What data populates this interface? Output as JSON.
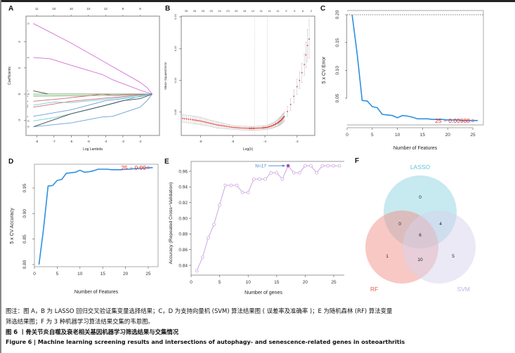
{
  "panels": {
    "A": {
      "letter": "A"
    },
    "B": {
      "letter": "B"
    },
    "C": {
      "letter": "C"
    },
    "D": {
      "letter": "D"
    },
    "E": {
      "letter": "E"
    },
    "F": {
      "letter": "F"
    }
  },
  "caption": {
    "note_line1": "图注：图 A，B 为 LASSO 回归交叉验证集变量选择结果；C，D 为支持向量机 (SVM) 算法结果图 ( 误差率及准确率 )；E 为随机森林 (RF) 算法变量",
    "note_line2": "筛选结果图；F 为 3 种机器学习算法结果交集的韦恩图。",
    "title_cn": "图 6 丨骨关节炎自噬及衰老相关基因机器学习筛选结果与交集情况",
    "title_en": "Figure 6  |  Machine learning screening results and intersections of autophagy- and senescence-related genes in osteoarthritis"
  },
  "chart_data": [
    {
      "id": "A",
      "type": "line",
      "title": "",
      "xlabel": "Log Lambda",
      "ylabel": "Coefficients",
      "xlim": [
        -8.5,
        -1.0
      ],
      "ylim": [
        -3.0,
        5.8
      ],
      "xticks": [
        -8,
        -7,
        -6,
        -5,
        -4,
        -3,
        -2
      ],
      "yticks": [
        -2,
        0,
        2,
        4
      ],
      "top_axis_x": [
        -8.0,
        -7.0,
        -6.0,
        -5.0,
        -4.0,
        -3.0,
        -2.0
      ],
      "top_axis_labels": [
        "11",
        "10",
        "10",
        "10",
        "12",
        "8",
        "8"
      ],
      "series": [
        {
          "name": "path1",
          "color": "#d36fd6",
          "x": [
            -8.2,
            -6,
            -4,
            -2,
            -1.6,
            -1.3
          ],
          "y": [
            5.4,
            3.9,
            2.4,
            0.9,
            0.5,
            0
          ]
        },
        {
          "name": "path2",
          "color": "#d36fd6",
          "x": [
            -8.2,
            -7.2,
            -6,
            -4.2,
            -3.6,
            -2,
            -1.3
          ],
          "y": [
            2.8,
            2.7,
            2.2,
            1.5,
            1.1,
            0.3,
            0
          ]
        },
        {
          "name": "path3",
          "color": "#444444",
          "x": [
            -8.2,
            -7.3,
            -2,
            -1.3
          ],
          "y": [
            0.25,
            0,
            0,
            0
          ]
        },
        {
          "name": "path4",
          "color": "#70b070",
          "x": [
            -8.2,
            -1.3
          ],
          "y": [
            0.0,
            0
          ]
        },
        {
          "name": "path5",
          "color": "#70b070",
          "x": [
            -8.2,
            -4,
            -1.3
          ],
          "y": [
            -0.15,
            -0.1,
            0
          ]
        },
        {
          "name": "path6",
          "color": "#d46a78",
          "x": [
            -8.2,
            -6.5,
            -4.2,
            -3.5,
            -1.3
          ],
          "y": [
            -0.55,
            -0.35,
            0,
            -0.1,
            0
          ]
        },
        {
          "name": "path7",
          "color": "#d46a78",
          "x": [
            -8.2,
            -6,
            -4,
            -1.3
          ],
          "y": [
            -1.0,
            -0.55,
            -0.3,
            0
          ]
        },
        {
          "name": "path8",
          "color": "#6fcfd8",
          "x": [
            -8.2,
            -7,
            -6,
            -4,
            -2,
            -1.3
          ],
          "y": [
            -0.85,
            -0.6,
            -0.65,
            -0.4,
            -0.1,
            0
          ]
        },
        {
          "name": "path9",
          "color": "#6a9fd8",
          "x": [
            -8.2,
            -6,
            -4,
            -2,
            -1.3
          ],
          "y": [
            -1.7,
            -1.2,
            -0.5,
            -0.2,
            0
          ]
        },
        {
          "name": "path10",
          "color": "#6fcfd8",
          "x": [
            -8.2,
            -7,
            -5,
            -3.5,
            -2,
            -1.3
          ],
          "y": [
            -2.05,
            -1.8,
            -1.2,
            -0.7,
            -0.15,
            0
          ]
        },
        {
          "name": "path11",
          "color": "#444444",
          "x": [
            -8.2,
            -6,
            -4,
            -3,
            -2,
            -1.6,
            -1.3
          ],
          "y": [
            -2.5,
            -1.5,
            -0.85,
            -0.5,
            -0.35,
            -0.15,
            0
          ]
        },
        {
          "name": "path12",
          "color": "#6a9fd8",
          "x": [
            -8.2,
            -6,
            -4.2,
            -3.6,
            -2,
            -1.6,
            -1.3
          ],
          "y": [
            -2.5,
            -2.2,
            -1.75,
            -1.7,
            -1.0,
            -0.5,
            0
          ]
        }
      ],
      "left_labels": [
        "15",
        "21",
        "1",
        "16",
        "3",
        "4",
        "2",
        "8",
        "4",
        "26",
        "26"
      ]
    },
    {
      "id": "B",
      "type": "scatter",
      "title": "",
      "xlabel": "Log(λ)",
      "ylabel": "Mean−Squared Error",
      "xlim": [
        -9.2,
        -0.9
      ],
      "ylim": [
        0.0,
        0.2
      ],
      "xticks": [
        -8,
        -6,
        -4,
        -2
      ],
      "yticks": [
        0.05,
        0.1,
        0.15,
        0.2
      ],
      "top_axis_labels": [
        "25",
        "26",
        "25",
        "25",
        "24",
        "23",
        "20",
        "15",
        "12",
        "11",
        "11",
        "11",
        "9",
        "9",
        "6",
        "2"
      ],
      "vlines": [
        -4.65,
        -3.85
      ],
      "curve_points": [
        [
          -9.1,
          0.04
        ],
        [
          -8.5,
          0.038
        ],
        [
          -8.0,
          0.036
        ],
        [
          -7.5,
          0.033
        ],
        [
          -7.0,
          0.03
        ],
        [
          -6.5,
          0.028
        ],
        [
          -6.0,
          0.026
        ],
        [
          -5.5,
          0.025
        ],
        [
          -5.0,
          0.0245
        ],
        [
          -4.65,
          0.0245
        ],
        [
          -4.2,
          0.025
        ],
        [
          -3.85,
          0.026
        ],
        [
          -3.5,
          0.029
        ],
        [
          -3.2,
          0.033
        ],
        [
          -3.0,
          0.037
        ],
        [
          -2.8,
          0.043
        ],
        [
          -2.6,
          0.051
        ],
        [
          -2.4,
          0.062
        ],
        [
          -2.2,
          0.075
        ],
        [
          -2.0,
          0.09
        ],
        [
          -1.85,
          0.1
        ],
        [
          -1.7,
          0.112
        ],
        [
          -1.55,
          0.125
        ],
        [
          -1.45,
          0.14
        ],
        [
          -1.35,
          0.155
        ],
        [
          -1.25,
          0.165
        ]
      ],
      "error_halfwidth": [
        0.006,
        0.006,
        0.006,
        0.005,
        0.005,
        0.004,
        0.003,
        0.003,
        0.003,
        0.003,
        0.003,
        0.003,
        0.004,
        0.005,
        0.006,
        0.007,
        0.008,
        0.009,
        0.01,
        0.012,
        0.013,
        0.015,
        0.017,
        0.02,
        0.025,
        0.03
      ],
      "point_color": "#e8312b",
      "error_color": "#bbbbbb"
    },
    {
      "id": "C",
      "type": "line",
      "title": "",
      "xlabel": "Number of Features",
      "ylabel": "5 x CV Error",
      "xlim": [
        0,
        26.5
      ],
      "ylim": [
        0.005,
        0.205
      ],
      "xticks": [
        0,
        5,
        10,
        15,
        20,
        25
      ],
      "yticks": [
        0.05,
        0.1,
        0.15,
        0.2
      ],
      "hline": 0.2,
      "x": [
        1,
        2,
        3,
        4,
        5,
        6,
        7,
        8,
        9,
        10,
        11,
        12,
        13,
        14,
        15,
        16,
        17,
        18,
        19,
        20,
        21,
        22,
        23,
        24,
        25,
        26
      ],
      "values": [
        0.2,
        0.13,
        0.046,
        0.045,
        0.035,
        0.033,
        0.021,
        0.02,
        0.019,
        0.015,
        0.019,
        0.018,
        0.016,
        0.013,
        0.013,
        0.013,
        0.012,
        0.012,
        0.012,
        0.011,
        0.011,
        0.011,
        0.01,
        0.01,
        0.00988,
        0.01
      ],
      "annotation": "25 − 0.00988",
      "annotation_x": 25,
      "annotation_y": 0.00988,
      "line_color": "#2f8fe0",
      "annotation_color": "#e8312b"
    },
    {
      "id": "D",
      "type": "line",
      "title": "",
      "xlabel": "Number of Features",
      "ylabel": "5 x CV Accuracy",
      "xlim": [
        0,
        26.5
      ],
      "ylim": [
        0.795,
        0.995
      ],
      "xticks": [
        0,
        5,
        10,
        15,
        20,
        25
      ],
      "yticks": [
        0.8,
        0.85,
        0.9,
        0.95
      ],
      "x": [
        1,
        2,
        3,
        4,
        5,
        6,
        7,
        8,
        9,
        10,
        11,
        12,
        13,
        14,
        15,
        16,
        17,
        18,
        19,
        20,
        21,
        22,
        23,
        24,
        25,
        26
      ],
      "values": [
        0.8,
        0.87,
        0.954,
        0.955,
        0.965,
        0.967,
        0.979,
        0.98,
        0.981,
        0.985,
        0.981,
        0.982,
        0.984,
        0.987,
        0.987,
        0.987,
        0.986,
        0.986,
        0.986,
        0.987,
        0.987,
        0.988,
        0.989,
        0.989,
        0.99,
        0.99
      ],
      "annotation": "25 − 0.99",
      "annotation_x": 25,
      "annotation_y": 0.99,
      "line_color": "#2f8fe0",
      "annotation_color": "#e8312b"
    },
    {
      "id": "E",
      "type": "line",
      "title": "",
      "xlabel": "Number of genes",
      "ylabel": "Accuracy (Repeated Cross−Validation)",
      "xlim": [
        0,
        26.5
      ],
      "ylim": [
        0.828,
        0.971
      ],
      "xticks": [
        0,
        5,
        10,
        15,
        20,
        25
      ],
      "yticks": [
        0.84,
        0.86,
        0.88,
        0.9,
        0.92,
        0.94,
        0.96
      ],
      "x": [
        1,
        2,
        3,
        4,
        5,
        6,
        7,
        8,
        9,
        10,
        11,
        12,
        13,
        14,
        15,
        16,
        17,
        18,
        19,
        20,
        21,
        22,
        23,
        24,
        25,
        26
      ],
      "values": [
        0.833,
        0.85,
        0.875,
        0.892,
        0.917,
        0.942,
        0.942,
        0.942,
        0.933,
        0.933,
        0.95,
        0.95,
        0.95,
        0.958,
        0.958,
        0.95,
        0.967,
        0.958,
        0.958,
        0.967,
        0.967,
        0.958,
        0.967,
        0.967,
        0.967,
        0.967
      ],
      "highlight_x": 17,
      "annotation": "N=17",
      "line_color": "#c89be0",
      "highlight_color": "#9b4fc0",
      "annotation_color": "#3f7fd6"
    },
    {
      "id": "F",
      "type": "venn",
      "sets": [
        {
          "name": "LASSO",
          "color": "#8fd3e2",
          "label_color": "#5ec3dd"
        },
        {
          "name": "RF",
          "color": "#f2928a",
          "label_color": "#e8584c"
        },
        {
          "name": "SVM",
          "color": "#d6d3ec",
          "label_color": "#b8b4de"
        }
      ],
      "regions": {
        "LASSO_only": 0,
        "RF_only": 1,
        "SVM_only": 5,
        "LASSO_RF": 0,
        "LASSO_SVM": 4,
        "RF_SVM": 10,
        "ALL": 6
      }
    }
  ]
}
